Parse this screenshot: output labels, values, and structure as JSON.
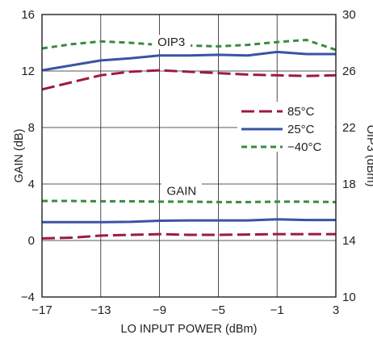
{
  "chart_data": {
    "type": "line",
    "title": "",
    "xlabel": "LO INPUT POWER (dBm)",
    "ylabel": "GAIN (dB)",
    "y2label": "OIP3 (dBm)",
    "xlim": [
      -17,
      3
    ],
    "ylim": [
      -4,
      16
    ],
    "y2lim": [
      10,
      30
    ],
    "x_ticks": [
      "−17",
      "−13",
      "−9",
      "−5",
      "−1",
      "3"
    ],
    "x_tick_values": [
      -17,
      -13,
      -9,
      -5,
      -1,
      3
    ],
    "y_ticks": [
      "−4",
      "0",
      "4",
      "8",
      "12",
      "16"
    ],
    "y_tick_values": [
      -4,
      0,
      4,
      8,
      12,
      16
    ],
    "y2_ticks": [
      "10",
      "14",
      "18",
      "22",
      "26",
      "30"
    ],
    "y2_tick_values": [
      10,
      14,
      18,
      22,
      26,
      30
    ],
    "grid": true,
    "annotations": {
      "oip3": "OIP3",
      "gain": "GAIN"
    },
    "legend": {
      "position": "right",
      "entries": [
        {
          "label": "85°C",
          "color": "#9b1b3f",
          "dash": "long-dash"
        },
        {
          "label": "25°C",
          "color": "#3a53a4",
          "dash": "solid"
        },
        {
          "label": "−40°C",
          "color": "#3a8a3f",
          "dash": "short-dash"
        }
      ]
    },
    "series": [
      {
        "name": "85°C",
        "group": "OIP3",
        "axis": "right",
        "color": "#9b1b3f",
        "dash": "long-dash",
        "x": [
          -17,
          -15,
          -13,
          -11,
          -9,
          -7,
          -5,
          -3,
          -1,
          1,
          3
        ],
        "y": [
          24.7,
          25.2,
          25.7,
          25.95,
          26.05,
          25.95,
          25.85,
          25.75,
          25.7,
          25.65,
          25.7
        ]
      },
      {
        "name": "25°C",
        "group": "OIP3",
        "axis": "right",
        "color": "#3a53a4",
        "dash": "solid",
        "x": [
          -17,
          -15,
          -13,
          -11,
          -9,
          -7,
          -5,
          -3,
          -1,
          1,
          3
        ],
        "y": [
          26.05,
          26.4,
          26.75,
          26.9,
          27.1,
          27.1,
          27.15,
          27.1,
          27.35,
          27.2,
          27.2
        ]
      },
      {
        "name": "−40°C",
        "group": "OIP3",
        "axis": "right",
        "color": "#3a8a3f",
        "dash": "short-dash",
        "x": [
          -17,
          -15,
          -13,
          -11,
          -9,
          -7,
          -5,
          -3,
          -1,
          1,
          3
        ],
        "y": [
          27.6,
          27.9,
          28.1,
          28.0,
          27.85,
          27.8,
          27.75,
          27.85,
          28.05,
          28.2,
          27.5
        ]
      },
      {
        "name": "85°C",
        "group": "GAIN",
        "axis": "left",
        "color": "#9b1b3f",
        "dash": "long-dash",
        "x": [
          -17,
          -15,
          -13,
          -11,
          -9,
          -7,
          -5,
          -3,
          -1,
          1,
          3
        ],
        "y": [
          0.15,
          0.2,
          0.35,
          0.4,
          0.45,
          0.4,
          0.4,
          0.42,
          0.45,
          0.45,
          0.45
        ]
      },
      {
        "name": "25°C",
        "group": "GAIN",
        "axis": "left",
        "color": "#3a53a4",
        "dash": "solid",
        "x": [
          -17,
          -15,
          -13,
          -11,
          -9,
          -7,
          -5,
          -3,
          -1,
          1,
          3
        ],
        "y": [
          1.3,
          1.3,
          1.3,
          1.32,
          1.4,
          1.42,
          1.42,
          1.42,
          1.5,
          1.45,
          1.45
        ]
      },
      {
        "name": "−40°C",
        "group": "GAIN",
        "axis": "left",
        "color": "#3a8a3f",
        "dash": "short-dash",
        "x": [
          -17,
          -15,
          -13,
          -11,
          -9,
          -7,
          -5,
          -3,
          -1,
          1,
          3
        ],
        "y": [
          2.8,
          2.8,
          2.78,
          2.78,
          2.75,
          2.75,
          2.72,
          2.72,
          2.75,
          2.75,
          2.72
        ]
      }
    ]
  }
}
